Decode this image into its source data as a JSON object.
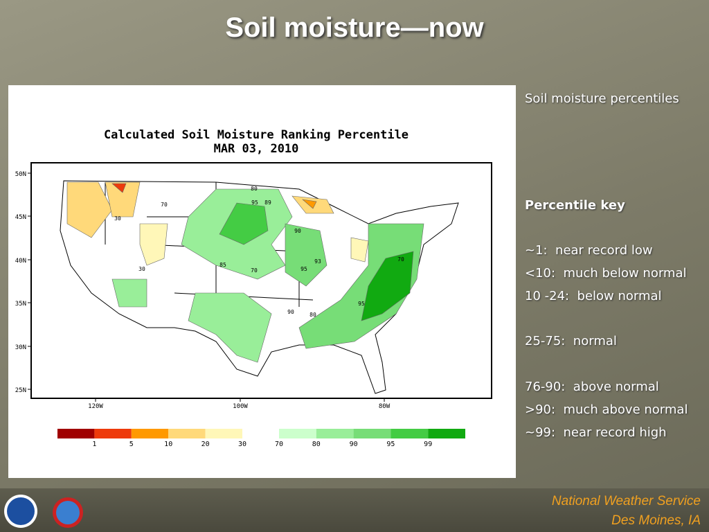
{
  "title": "Soil moisture—now",
  "map": {
    "title": "Calculated Soil Moisture Ranking Percentile",
    "date": "MAR 03, 2010",
    "lat_labels": [
      "50N",
      "45N",
      "40N",
      "35N",
      "30N",
      "25N"
    ],
    "lon_labels": [
      "120W",
      "100W",
      "80W"
    ],
    "contour_labels": [
      "70",
      "30",
      "80",
      "95",
      "89",
      "85",
      "70",
      "90",
      "93",
      "95",
      "90",
      "80",
      "30",
      "95",
      "70"
    ],
    "colorbar": [
      {
        "label": "1",
        "color": "#a00000"
      },
      {
        "label": "5",
        "color": "#ee3a0b"
      },
      {
        "label": "10",
        "color": "#ff9900"
      },
      {
        "label": "20",
        "color": "#ffd97a"
      },
      {
        "label": "30",
        "color": "#fff7b8"
      },
      {
        "label": "70",
        "color": "#ccffcc"
      },
      {
        "label": "80",
        "color": "#99ee99"
      },
      {
        "label": "90",
        "color": "#77dd77"
      },
      {
        "label": "95",
        "color": "#44cc44"
      },
      {
        "label": "99",
        "color": "#11aa11"
      }
    ]
  },
  "key": {
    "heading": "Soil moisture percentiles",
    "subheading": "Percentile key",
    "items": [
      "~1:  near record low",
      "<10:  much below normal",
      "10 -24:  below normal",
      "25-75:  normal",
      "76-90:  above normal",
      ">90:  much above normal",
      "~99:  near record high"
    ]
  },
  "footer": [
    "National Weather Service",
    "Des Moines, IA"
  ]
}
